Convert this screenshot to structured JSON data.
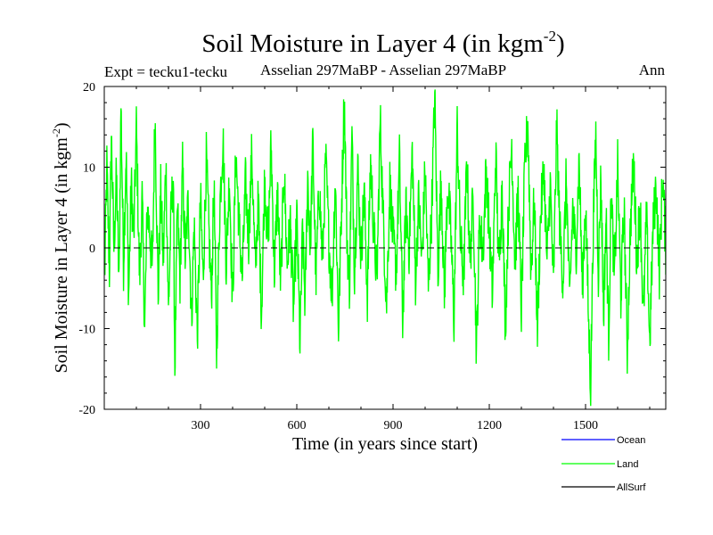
{
  "chart_data": {
    "type": "line",
    "title": "Soil Moisture in Layer 4 (in kgm",
    "title_superscript": "-2",
    "title_suffix": ")",
    "subtitle_left": "Expt = tecku1-tecku",
    "subtitle_center": "Asselian 297MaBP - Asselian 297MaBP",
    "subtitle_right": "Ann",
    "xlabel": "Time (in years since start)",
    "ylabel": "Soil Moisture in Layer 4 (in kgm",
    "ylabel_superscript": "-2",
    "ylabel_suffix": ")",
    "xlim": [
      0,
      1750
    ],
    "ylim": [
      -20,
      20
    ],
    "x_ticks": [
      300,
      600,
      900,
      1200,
      1500
    ],
    "x_tick_labels": [
      "300",
      "600",
      "900",
      "1200",
      "1500"
    ],
    "y_ticks": [
      -20,
      -10,
      0,
      10,
      20
    ],
    "y_tick_labels": [
      "-20",
      "-10",
      "0",
      "10",
      "20"
    ],
    "zero_line": {
      "y": 0,
      "style": "dashed",
      "color": "#000000"
    },
    "legend": [
      {
        "name": "Ocean",
        "color": "#0000ff"
      },
      {
        "name": "Land",
        "color": "#00ff00"
      },
      {
        "name": "AllSurf",
        "color": "#000000"
      }
    ],
    "series": [
      {
        "name": "Land",
        "color": "#00ff00",
        "x_start": 1,
        "x_step": 1,
        "n_points": 1750,
        "anchors": [
          [
            1,
            -4
          ],
          [
            8,
            10
          ],
          [
            16,
            -3
          ],
          [
            22,
            14
          ],
          [
            30,
            0
          ],
          [
            38,
            9
          ],
          [
            46,
            -5
          ],
          [
            52,
            18
          ],
          [
            60,
            -2
          ],
          [
            68,
            12
          ],
          [
            76,
            -6
          ],
          [
            84,
            8
          ],
          [
            92,
            1
          ],
          [
            100,
            15
          ],
          [
            110,
            -4
          ],
          [
            118,
            6
          ],
          [
            126,
            -10
          ],
          [
            134,
            5
          ],
          [
            142,
            2
          ],
          [
            150,
            -3
          ],
          [
            158,
            17
          ],
          [
            168,
            -6
          ],
          [
            176,
            7
          ],
          [
            184,
            -2
          ],
          [
            192,
            11
          ],
          [
            200,
            -8
          ],
          [
            208,
            4
          ],
          [
            215,
            9
          ],
          [
            220,
            -15
          ],
          [
            228,
            5
          ],
          [
            236,
            -4
          ],
          [
            244,
            10
          ],
          [
            252,
            -1
          ],
          [
            262,
            6
          ],
          [
            272,
            -9
          ],
          [
            280,
            3
          ],
          [
            290,
            -11
          ],
          [
            300,
            6
          ],
          [
            308,
            -4
          ],
          [
            318,
            11
          ],
          [
            326,
            2
          ],
          [
            334,
            -6
          ],
          [
            342,
            8
          ],
          [
            350,
            -13
          ],
          [
            360,
            5
          ],
          [
            370,
            14
          ],
          [
            380,
            -2
          ],
          [
            390,
            9
          ],
          [
            400,
            -7
          ],
          [
            410,
            12
          ],
          [
            420,
            3
          ],
          [
            430,
            -4
          ],
          [
            440,
            8
          ],
          [
            450,
            1
          ],
          [
            460,
            12
          ],
          [
            470,
            -3
          ],
          [
            480,
            6
          ],
          [
            490,
            -8
          ],
          [
            500,
            9
          ],
          [
            510,
            0
          ],
          [
            520,
            13
          ],
          [
            530,
            -3
          ],
          [
            540,
            7
          ],
          [
            550,
            -5
          ],
          [
            560,
            10
          ],
          [
            570,
            -2
          ],
          [
            580,
            3
          ],
          [
            590,
            -8
          ],
          [
            600,
            4
          ],
          [
            610,
            -12
          ],
          [
            618,
            2
          ],
          [
            626,
            -7
          ],
          [
            634,
            9
          ],
          [
            642,
            0
          ],
          [
            650,
            13
          ],
          [
            660,
            -4
          ],
          [
            670,
            8
          ],
          [
            680,
            -2
          ],
          [
            690,
            11
          ],
          [
            700,
            1
          ],
          [
            710,
            -6
          ],
          [
            720,
            9
          ],
          [
            730,
            -10
          ],
          [
            740,
            6
          ],
          [
            748,
            19
          ],
          [
            756,
            2
          ],
          [
            764,
            -5
          ],
          [
            772,
            14
          ],
          [
            780,
            -3
          ],
          [
            790,
            10
          ],
          [
            800,
            -1
          ],
          [
            810,
            7
          ],
          [
            820,
            -6
          ],
          [
            830,
            11
          ],
          [
            840,
            2
          ],
          [
            850,
            -4
          ],
          [
            860,
            16
          ],
          [
            870,
            3
          ],
          [
            880,
            -7
          ],
          [
            890,
            8
          ],
          [
            900,
            1
          ],
          [
            910,
            -3
          ],
          [
            920,
            11
          ],
          [
            930,
            -9
          ],
          [
            940,
            5
          ],
          [
            950,
            0
          ],
          [
            960,
            12
          ],
          [
            970,
            -4
          ],
          [
            980,
            6
          ],
          [
            990,
            -2
          ],
          [
            1000,
            10
          ],
          [
            1010,
            -5
          ],
          [
            1020,
            4
          ],
          [
            1030,
            19
          ],
          [
            1040,
            -3
          ],
          [
            1050,
            9
          ],
          [
            1060,
            -6
          ],
          [
            1070,
            8
          ],
          [
            1080,
            2
          ],
          [
            1090,
            -9
          ],
          [
            1100,
            15
          ],
          [
            1110,
            1
          ],
          [
            1120,
            -4
          ],
          [
            1130,
            11
          ],
          [
            1140,
            -2
          ],
          [
            1150,
            7
          ],
          [
            1160,
            -13
          ],
          [
            1170,
            4
          ],
          [
            1180,
            -1
          ],
          [
            1190,
            10
          ],
          [
            1200,
            2
          ],
          [
            1210,
            -6
          ],
          [
            1220,
            12
          ],
          [
            1230,
            -3
          ],
          [
            1240,
            8
          ],
          [
            1250,
            -10
          ],
          [
            1260,
            5
          ],
          [
            1270,
            13
          ],
          [
            1280,
            -2
          ],
          [
            1290,
            7
          ],
          [
            1300,
            -8
          ],
          [
            1310,
            9
          ],
          [
            1320,
            16
          ],
          [
            1330,
            -3
          ],
          [
            1340,
            6
          ],
          [
            1350,
            -10
          ],
          [
            1360,
            4
          ],
          [
            1370,
            10
          ],
          [
            1380,
            -2
          ],
          [
            1390,
            8
          ],
          [
            1400,
            -5
          ],
          [
            1410,
            15
          ],
          [
            1420,
            2
          ],
          [
            1430,
            -4
          ],
          [
            1440,
            9
          ],
          [
            1450,
            -7
          ],
          [
            1460,
            5
          ],
          [
            1470,
            -1
          ],
          [
            1480,
            11
          ],
          [
            1490,
            -5
          ],
          [
            1500,
            6
          ],
          [
            1510,
            -10
          ],
          [
            1516,
            -17
          ],
          [
            1524,
            3
          ],
          [
            1532,
            14
          ],
          [
            1540,
            -3
          ],
          [
            1548,
            9
          ],
          [
            1556,
            -8
          ],
          [
            1564,
            4
          ],
          [
            1572,
            -11
          ],
          [
            1580,
            7
          ],
          [
            1590,
            -4
          ],
          [
            1600,
            10
          ],
          [
            1610,
            -6
          ],
          [
            1620,
            5
          ],
          [
            1630,
            -13
          ],
          [
            1640,
            3
          ],
          [
            1650,
            11
          ],
          [
            1660,
            -2
          ],
          [
            1670,
            6
          ],
          [
            1680,
            -9
          ],
          [
            1690,
            4
          ],
          [
            1700,
            -12
          ],
          [
            1710,
            2
          ],
          [
            1720,
            8
          ],
          [
            1730,
            -3
          ],
          [
            1740,
            9
          ],
          [
            1750,
            0
          ]
        ],
        "noise_amplitude": 3.5
      },
      {
        "name": "Ocean",
        "color": "#0000ff",
        "shown": false
      },
      {
        "name": "AllSurf",
        "color": "#000000",
        "shown": false
      }
    ]
  }
}
